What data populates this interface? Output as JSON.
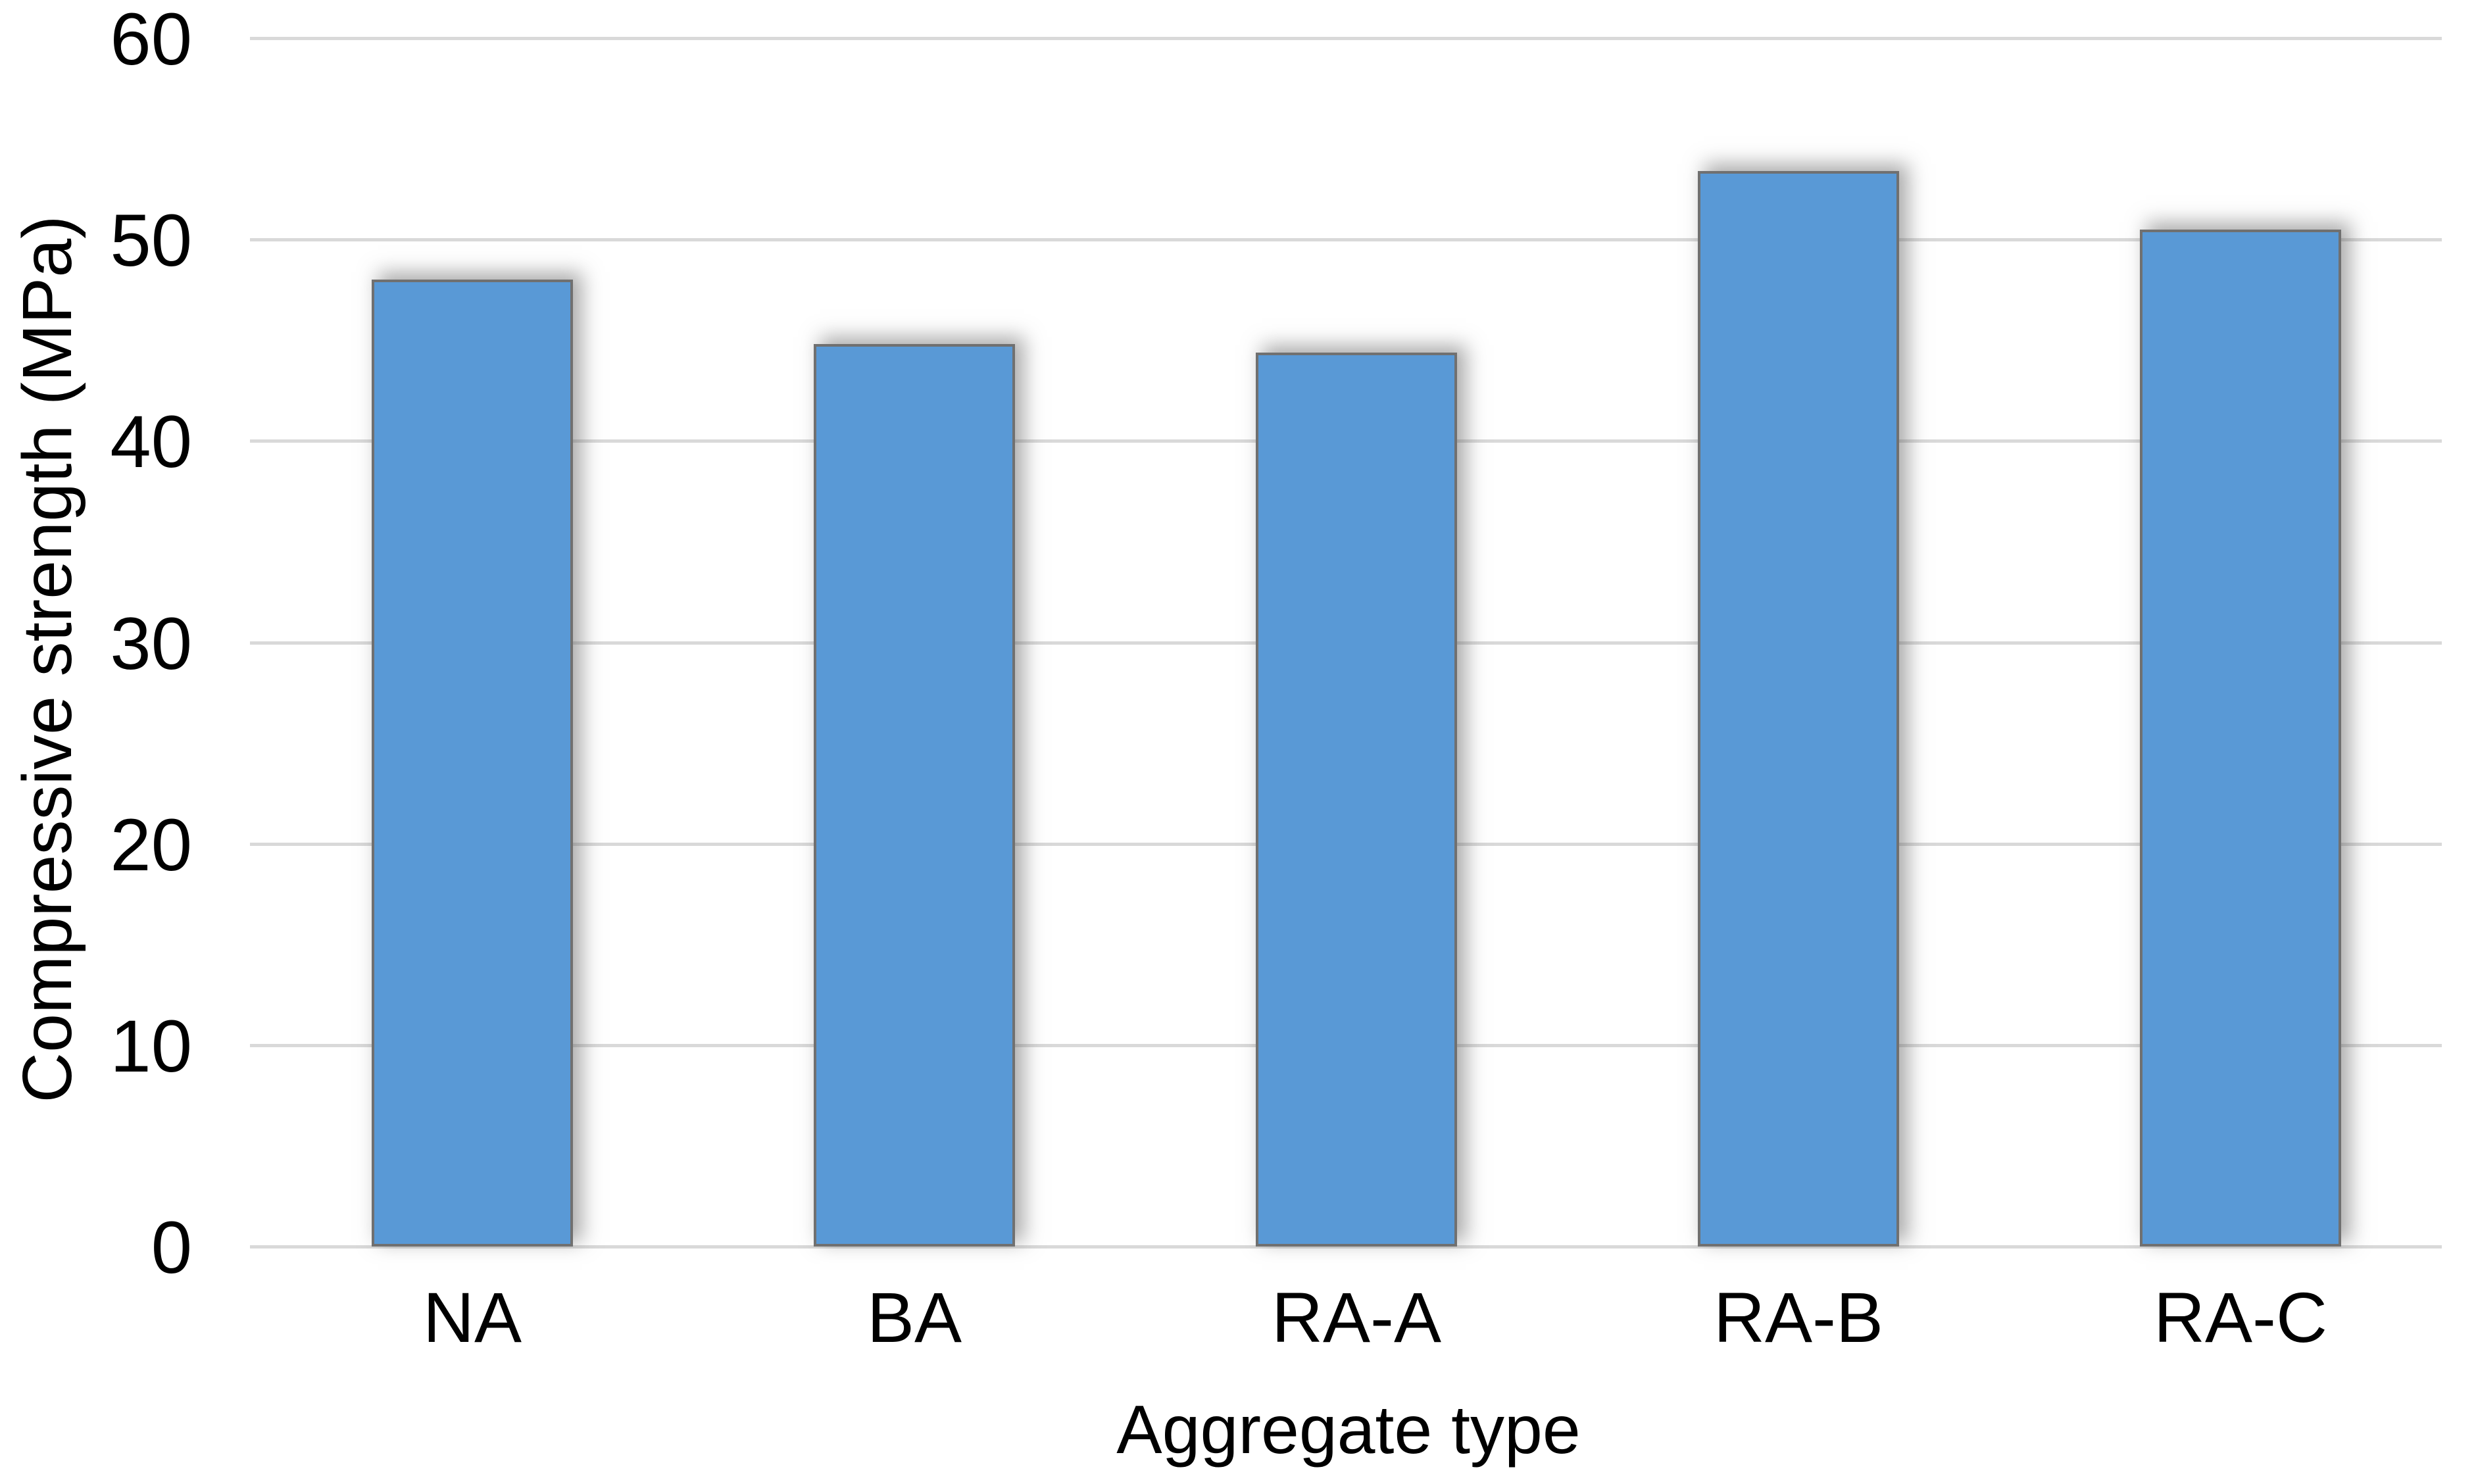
{
  "chart_data": {
    "type": "bar",
    "title": "",
    "categories": [
      "NA",
      "BA",
      "RA-A",
      "RA-B",
      "RA-C"
    ],
    "values": [
      48.0,
      44.8,
      44.4,
      53.4,
      50.5
    ],
    "series": [
      {
        "name": "Compressive strength",
        "values": [
          48.0,
          44.8,
          44.4,
          53.4,
          50.5
        ]
      }
    ],
    "xlabel": "Aggregate type",
    "ylabel": "Compressive strength (MPa)",
    "ylim": [
      0,
      60
    ],
    "yticks": [
      0,
      10,
      20,
      30,
      40,
      50,
      60
    ],
    "grid": "horizontal-only",
    "legend": "none",
    "bar_fill_color": "#5999D6",
    "bar_border_color": "#707070",
    "bar_shadow": "soft gray, offset up-right",
    "gridline_color": "#D9D9D9",
    "text_color": "#000000",
    "background_color": "#FFFFFF"
  }
}
